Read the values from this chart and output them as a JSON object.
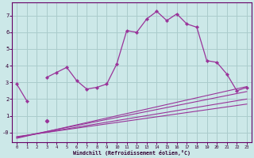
{
  "background_color": "#cce8e8",
  "grid_color": "#aacccc",
  "line_color": "#993399",
  "marker_color": "#993399",
  "xlim": [
    -0.5,
    23.5
  ],
  "ylim": [
    -0.6,
    7.8
  ],
  "xlabel": "Windchill (Refroidissement éolien,°C)",
  "xticks": [
    0,
    1,
    2,
    3,
    4,
    5,
    6,
    7,
    8,
    9,
    10,
    11,
    12,
    13,
    14,
    15,
    16,
    17,
    18,
    19,
    20,
    21,
    22,
    23
  ],
  "yticks": [
    0,
    1,
    2,
    3,
    4,
    5,
    6,
    7
  ],
  "ytick_labels": [
    "-0",
    "1",
    "2",
    "3",
    "4",
    "5",
    "6",
    "7"
  ],
  "series_x": [
    0,
    1,
    3,
    4,
    5,
    6,
    7,
    8,
    9,
    10,
    11,
    12,
    13,
    14,
    15,
    16,
    17,
    18,
    19,
    20,
    21,
    22,
    23
  ],
  "series_y": [
    2.9,
    1.9,
    3.3,
    3.6,
    3.9,
    3.1,
    2.6,
    2.7,
    2.9,
    4.1,
    6.1,
    6.0,
    6.8,
    7.25,
    6.7,
    7.1,
    6.5,
    6.3,
    4.3,
    4.2,
    3.5,
    2.5,
    2.7
  ],
  "straight_lines": [
    {
      "x": [
        0,
        23
      ],
      "y": [
        -0.35,
        2.75
      ]
    },
    {
      "x": [
        0,
        23
      ],
      "y": [
        -0.3,
        2.45
      ]
    },
    {
      "x": [
        0,
        23
      ],
      "y": [
        -0.28,
        2.0
      ]
    },
    {
      "x": [
        0,
        23
      ],
      "y": [
        -0.25,
        1.7
      ]
    }
  ],
  "seg2_x": [
    3
  ],
  "seg2_y": [
    0.7
  ]
}
